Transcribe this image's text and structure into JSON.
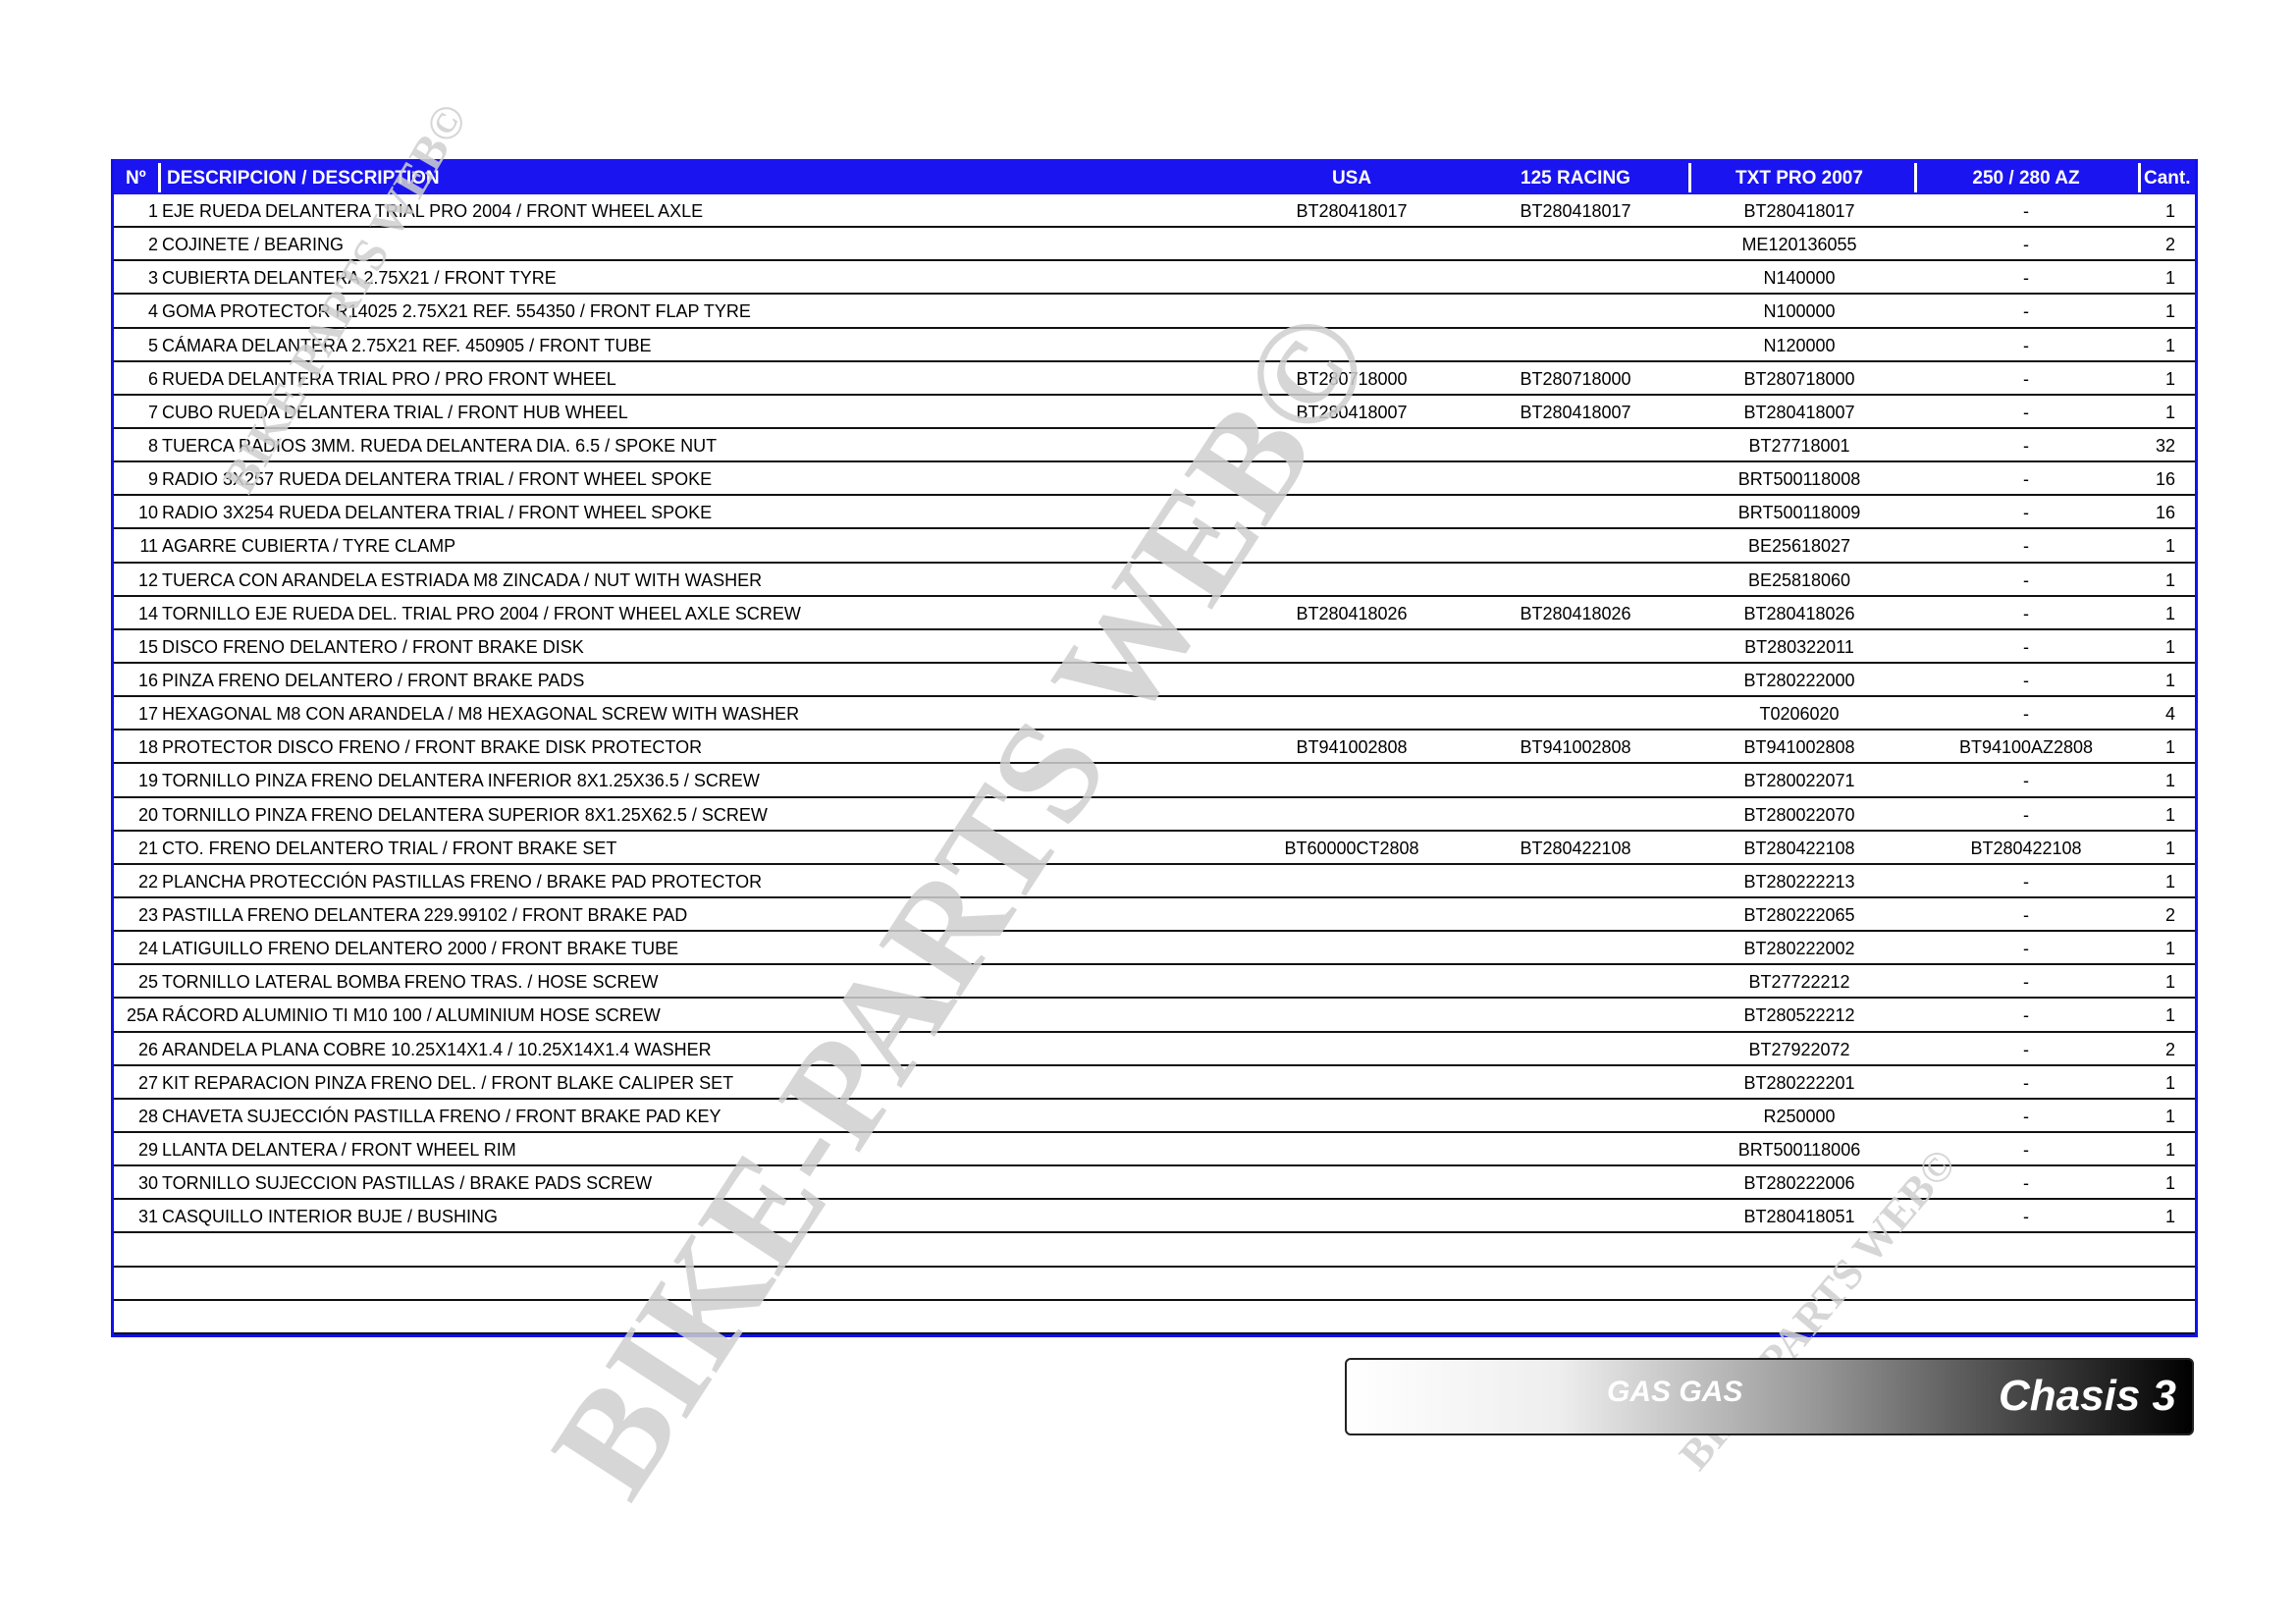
{
  "header": {
    "no": "Nº",
    "desc": "DESCRIPCION / DESCRIPTION",
    "usa": "USA",
    "r125": "125 RACING",
    "txt": "TXT PRO 2007",
    "az": "250 / 280 AZ",
    "qty": "Cant."
  },
  "colors": {
    "header_bg": "#1a14f0",
    "border": "#1010ee",
    "watermark": "#d0d0d0"
  },
  "rows": [
    {
      "no": "1",
      "desc": "EJE RUEDA DELANTERA TRIAL PRO 2004 / FRONT WHEEL AXLE",
      "usa": "BT280418017",
      "r125": "BT280418017",
      "txt": "BT280418017",
      "az": "-",
      "qty": "1"
    },
    {
      "no": "2",
      "desc": "COJINETE / BEARING",
      "usa": "",
      "r125": "",
      "txt": "ME120136055",
      "az": "-",
      "qty": "2"
    },
    {
      "no": "3",
      "desc": "CUBIERTA DELANTERA 2.75X21 / FRONT TYRE",
      "usa": "",
      "r125": "",
      "txt": "N140000",
      "az": "-",
      "qty": "1"
    },
    {
      "no": "4",
      "desc": "GOMA PROTECTOR R14025 2.75X21 REF. 554350 / FRONT FLAP TYRE",
      "usa": "",
      "r125": "",
      "txt": "N100000",
      "az": "-",
      "qty": "1"
    },
    {
      "no": "5",
      "desc": "CÁMARA DELANTERA 2.75X21 REF. 450905 / FRONT TUBE",
      "usa": "",
      "r125": "",
      "txt": "N120000",
      "az": "-",
      "qty": "1"
    },
    {
      "no": "6",
      "desc": "RUEDA DELANTERA TRIAL PRO / PRO FRONT WHEEL",
      "usa": "BT280718000",
      "r125": "BT280718000",
      "txt": "BT280718000",
      "az": "-",
      "qty": "1"
    },
    {
      "no": "7",
      "desc": "CUBO RUEDA DELANTERA TRIAL / FRONT HUB WHEEL",
      "usa": "BT280418007",
      "r125": "BT280418007",
      "txt": "BT280418007",
      "az": "-",
      "qty": "1"
    },
    {
      "no": "8",
      "desc": "TUERCA RADIOS 3MM. RUEDA DELANTERA DIA. 6.5 / SPOKE NUT",
      "usa": "",
      "r125": "",
      "txt": "BT27718001",
      "az": "-",
      "qty": "32"
    },
    {
      "no": "9",
      "desc": "RADIO 3X257 RUEDA DELANTERA TRIAL / FRONT WHEEL SPOKE",
      "usa": "",
      "r125": "",
      "txt": "BRT500118008",
      "az": "-",
      "qty": "16"
    },
    {
      "no": "10",
      "desc": "RADIO 3X254 RUEDA DELANTERA TRIAL / FRONT WHEEL SPOKE",
      "usa": "",
      "r125": "",
      "txt": "BRT500118009",
      "az": "-",
      "qty": "16"
    },
    {
      "no": "11",
      "desc": "AGARRE CUBIERTA / TYRE CLAMP",
      "usa": "",
      "r125": "",
      "txt": "BE25618027",
      "az": "-",
      "qty": "1"
    },
    {
      "no": "12",
      "desc": "TUERCA CON ARANDELA ESTRIADA M8 ZINCADA / NUT WITH WASHER",
      "usa": "",
      "r125": "",
      "txt": "BE25818060",
      "az": "-",
      "qty": "1"
    },
    {
      "no": "14",
      "desc": "TORNILLO EJE RUEDA DEL. TRIAL PRO 2004 / FRONT WHEEL AXLE SCREW",
      "usa": "BT280418026",
      "r125": "BT280418026",
      "txt": "BT280418026",
      "az": "-",
      "qty": "1"
    },
    {
      "no": "15",
      "desc": "DISCO FRENO DELANTERO / FRONT BRAKE DISK",
      "usa": "",
      "r125": "",
      "txt": "BT280322011",
      "az": "-",
      "qty": "1"
    },
    {
      "no": "16",
      "desc": "PINZA FRENO DELANTERO / FRONT BRAKE PADS",
      "usa": "",
      "r125": "",
      "txt": "BT280222000",
      "az": "-",
      "qty": "1"
    },
    {
      "no": "17",
      "desc": "HEXAGONAL M8 CON ARANDELA / M8 HEXAGONAL SCREW WITH WASHER",
      "usa": "",
      "r125": "",
      "txt": "T0206020",
      "az": "-",
      "qty": "4"
    },
    {
      "no": "18",
      "desc": "PROTECTOR DISCO FRENO / FRONT BRAKE DISK PROTECTOR",
      "usa": "BT941002808",
      "r125": "BT941002808",
      "txt": "BT941002808",
      "az": "BT94100AZ2808",
      "qty": "1"
    },
    {
      "no": "19",
      "desc": "TORNILLO PINZA FRENO DELANTERA INFERIOR 8X1.25X36.5 / SCREW",
      "usa": "",
      "r125": "",
      "txt": "BT280022071",
      "az": "-",
      "qty": "1"
    },
    {
      "no": "20",
      "desc": "TORNILLO PINZA FRENO DELANTERA SUPERIOR 8X1.25X62.5 / SCREW",
      "usa": "",
      "r125": "",
      "txt": "BT280022070",
      "az": "-",
      "qty": "1"
    },
    {
      "no": "21",
      "desc": "CTO. FRENO DELANTERO TRIAL / FRONT BRAKE SET",
      "usa": "BT60000CT2808",
      "r125": "BT280422108",
      "txt": "BT280422108",
      "az": "BT280422108",
      "qty": "1"
    },
    {
      "no": "22",
      "desc": "PLANCHA PROTECCIÓN PASTILLAS FRENO / BRAKE PAD PROTECTOR",
      "usa": "",
      "r125": "",
      "txt": "BT280222213",
      "az": "-",
      "qty": "1"
    },
    {
      "no": "23",
      "desc": "PASTILLA FRENO DELANTERA 229.99102 / FRONT BRAKE PAD",
      "usa": "",
      "r125": "",
      "txt": "BT280222065",
      "az": "-",
      "qty": "2"
    },
    {
      "no": "24",
      "desc": "LATIGUILLO FRENO DELANTERO 2000 / FRONT BRAKE TUBE",
      "usa": "",
      "r125": "",
      "txt": "BT280222002",
      "az": "-",
      "qty": "1"
    },
    {
      "no": "25",
      "desc": "TORNILLO LATERAL BOMBA FRENO TRAS. / HOSE SCREW",
      "usa": "",
      "r125": "",
      "txt": "BT27722212",
      "az": "-",
      "qty": "1"
    },
    {
      "no": "25A",
      "desc": "RÁCORD ALUMINIO TI M10 100 / ALUMINIUM HOSE SCREW",
      "usa": "",
      "r125": "",
      "txt": "BT280522212",
      "az": "-",
      "qty": "1"
    },
    {
      "no": "26",
      "desc": "ARANDELA PLANA COBRE 10.25X14X1.4 / 10.25X14X1.4 WASHER",
      "usa": "",
      "r125": "",
      "txt": "BT27922072",
      "az": "-",
      "qty": "2"
    },
    {
      "no": "27",
      "desc": "KIT REPARACION PINZA FRENO DEL. / FRONT BLAKE CALIPER SET",
      "usa": "",
      "r125": "",
      "txt": "BT280222201",
      "az": "-",
      "qty": "1"
    },
    {
      "no": "28",
      "desc": "CHAVETA SUJECCIÓN PASTILLA FRENO / FRONT BRAKE PAD KEY",
      "usa": "",
      "r125": "",
      "txt": "R250000",
      "az": "-",
      "qty": "1"
    },
    {
      "no": "29",
      "desc": "LLANTA DELANTERA / FRONT WHEEL RIM",
      "usa": "",
      "r125": "",
      "txt": "BRT500118006",
      "az": "-",
      "qty": "1"
    },
    {
      "no": "30",
      "desc": "TORNILLO SUJECCION PASTILLAS / BRAKE PADS SCREW",
      "usa": "",
      "r125": "",
      "txt": "BT280222006",
      "az": "-",
      "qty": "1"
    },
    {
      "no": "31",
      "desc": "CASQUILLO INTERIOR BUJE / BUSHING",
      "usa": "",
      "r125": "",
      "txt": "BT280418051",
      "az": "-",
      "qty": "1"
    },
    {
      "no": "",
      "desc": "",
      "usa": "",
      "r125": "",
      "txt": "",
      "az": "",
      "qty": ""
    },
    {
      "no": "",
      "desc": "",
      "usa": "",
      "r125": "",
      "txt": "",
      "az": "",
      "qty": ""
    },
    {
      "no": "",
      "desc": "",
      "usa": "",
      "r125": "",
      "txt": "",
      "az": "",
      "qty": ""
    }
  ],
  "footer": {
    "brand": "GAS GAS",
    "title": "Chasis 3"
  },
  "watermark": {
    "text": "BIKE-PARTS WEB©"
  }
}
